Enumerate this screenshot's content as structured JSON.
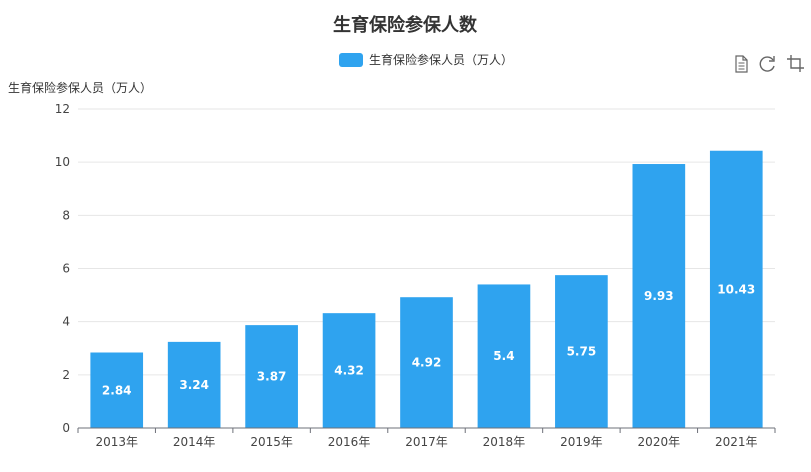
{
  "chart_data": {
    "type": "bar",
    "title": "生育保险参保人数",
    "ylabel": "生育保险参保人员（万人）",
    "xlabel": "",
    "categories": [
      "2013年",
      "2014年",
      "2015年",
      "2016年",
      "2017年",
      "2018年",
      "2019年",
      "2020年",
      "2021年"
    ],
    "series": [
      {
        "name": "生育保险参保人员（万人）",
        "values": [
          2.84,
          3.24,
          3.87,
          4.32,
          4.92,
          5.4,
          5.75,
          9.93,
          10.43
        ],
        "color": "#2fa3ef"
      }
    ],
    "ylim": [
      0,
      12
    ],
    "yticks": [
      0,
      2,
      4,
      6,
      8,
      10,
      12
    ],
    "grid": true,
    "legend_position": "top-center",
    "data_labels": true
  },
  "toolbox": {
    "icons": [
      "data-view-icon",
      "restore-icon",
      "save-image-icon"
    ]
  }
}
